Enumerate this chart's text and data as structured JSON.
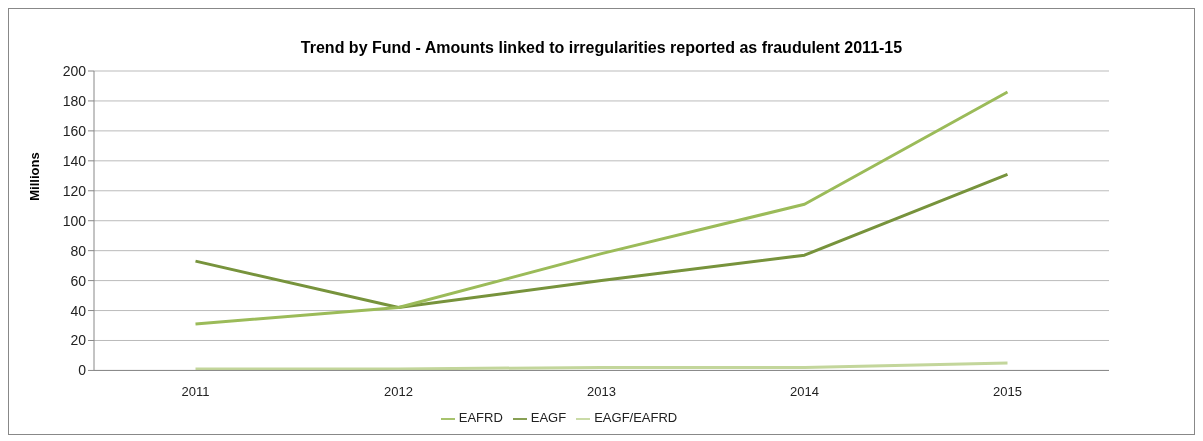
{
  "chart_data": {
    "type": "line",
    "title": "Trend by Fund - Amounts linked to irregularities reported as fraudulent 2011-15",
    "ylabel": "Millions",
    "categories": [
      "2011",
      "2012",
      "2013",
      "2014",
      "2015"
    ],
    "series": [
      {
        "name": "EAGF",
        "color": "#77933c",
        "values": [
          73,
          42,
          60,
          77,
          131
        ]
      },
      {
        "name": "EAFRD",
        "color": "#9bbb59",
        "values": [
          31,
          42,
          78,
          111,
          186
        ]
      },
      {
        "name": "EAGF/EAFRD",
        "color": "#c3d69b",
        "values": [
          1,
          1,
          2,
          2,
          5
        ]
      }
    ],
    "ylim": [
      0,
      200
    ],
    "yticks": [
      0,
      20,
      40,
      60,
      80,
      100,
      120,
      140,
      160,
      180,
      200
    ],
    "grid": "y",
    "legend": "bottom",
    "marker": "none",
    "line_style": "solid"
  }
}
